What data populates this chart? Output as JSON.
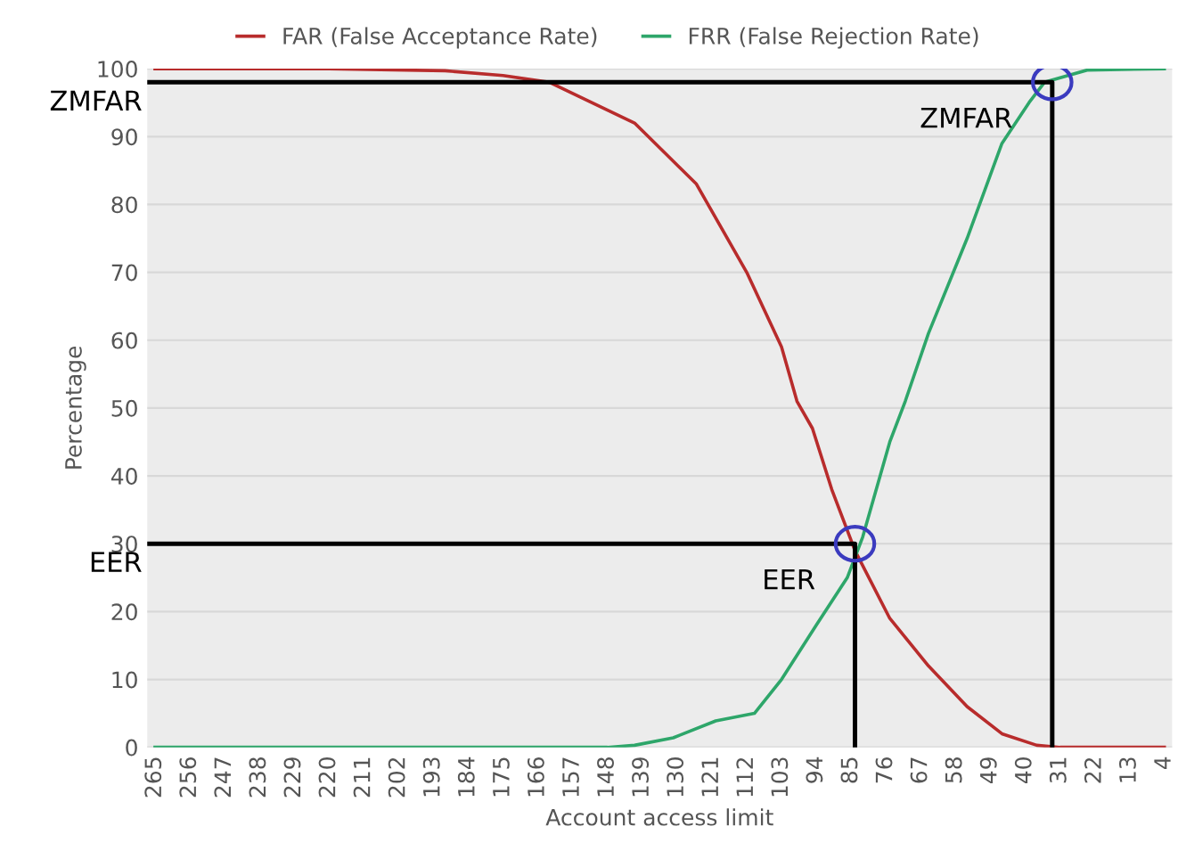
{
  "chart_data": {
    "type": "line",
    "xlabel": "Account access limit",
    "ylabel": "Percentage",
    "xlim": [
      267,
      2
    ],
    "xticks": [
      265,
      256,
      247,
      238,
      229,
      220,
      211,
      202,
      193,
      184,
      175,
      166,
      157,
      148,
      139,
      130,
      121,
      112,
      103,
      94,
      85,
      76,
      67,
      58,
      49,
      40,
      31,
      22,
      13,
      4
    ],
    "ylim": [
      0,
      100
    ],
    "yticks": [
      0,
      10,
      20,
      30,
      40,
      50,
      60,
      70,
      80,
      90,
      100
    ],
    "grid": "y",
    "legend": "top",
    "line_style": "solid",
    "marker": "none",
    "series": [
      {
        "name": "FAR (False Acceptance Rate)",
        "color": "#b82c2c",
        "x": [
          265,
          220,
          190,
          175,
          163,
          141,
          125,
          112,
          103,
          99,
          95,
          90,
          84,
          75,
          65,
          55,
          46,
          37,
          31,
          4
        ],
        "values": [
          100,
          100,
          99.7,
          99,
          98,
          92,
          83,
          70,
          59,
          51,
          47,
          38,
          29,
          19,
          12,
          6,
          2,
          0.3,
          0,
          0
        ]
      },
      {
        "name": "FRR (False Rejection Rate)",
        "color": "#2ea66a",
        "x": [
          265,
          148,
          141,
          131,
          120,
          110,
          103,
          94,
          86,
          82,
          75,
          71,
          65,
          55,
          46,
          39,
          35,
          24,
          4
        ],
        "values": [
          0,
          0,
          0.3,
          1.4,
          3.9,
          5,
          10,
          18,
          25,
          31,
          45,
          51,
          61,
          75,
          89,
          95,
          98,
          99.8,
          100
        ]
      },
      {
        "color": "#000000",
        "x": [
          267,
          33,
          33
        ],
        "values": [
          98,
          98,
          0
        ]
      },
      {
        "color": "#000000",
        "x": [
          267,
          84,
          84
        ],
        "values": [
          30,
          30,
          0
        ]
      }
    ],
    "annotations": [
      {
        "text": "ZMFAR",
        "x": 267,
        "y": 98
      },
      {
        "text": "ZMFAR",
        "x": 33,
        "y": 98
      },
      {
        "text": "EER",
        "x": 267,
        "y": 30
      },
      {
        "text": "EER",
        "x": 84,
        "y": 30
      }
    ]
  }
}
